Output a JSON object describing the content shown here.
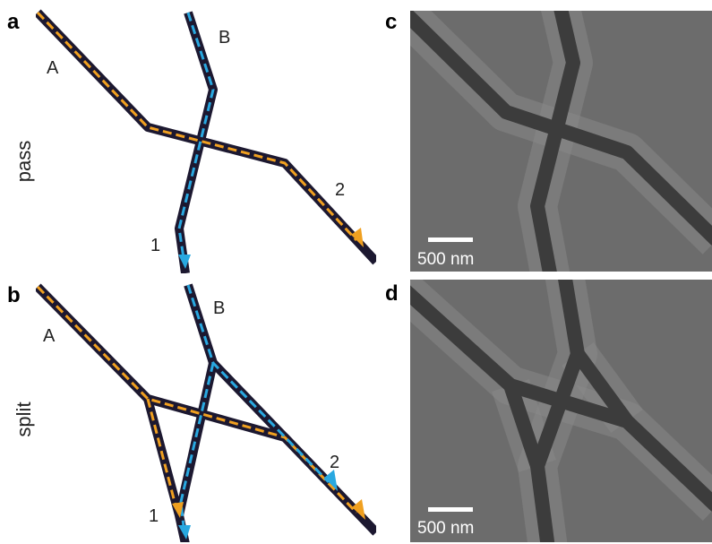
{
  "panels": [
    {
      "letter": "a",
      "side_label": "pass",
      "ports": [
        "A",
        "B",
        "1",
        "2"
      ]
    },
    {
      "letter": "b",
      "side_label": "split",
      "ports": [
        "A",
        "B",
        "1",
        "2"
      ]
    },
    {
      "letter": "c",
      "scale_bar": "500 nm"
    },
    {
      "letter": "d",
      "scale_bar": "500 nm"
    }
  ]
}
